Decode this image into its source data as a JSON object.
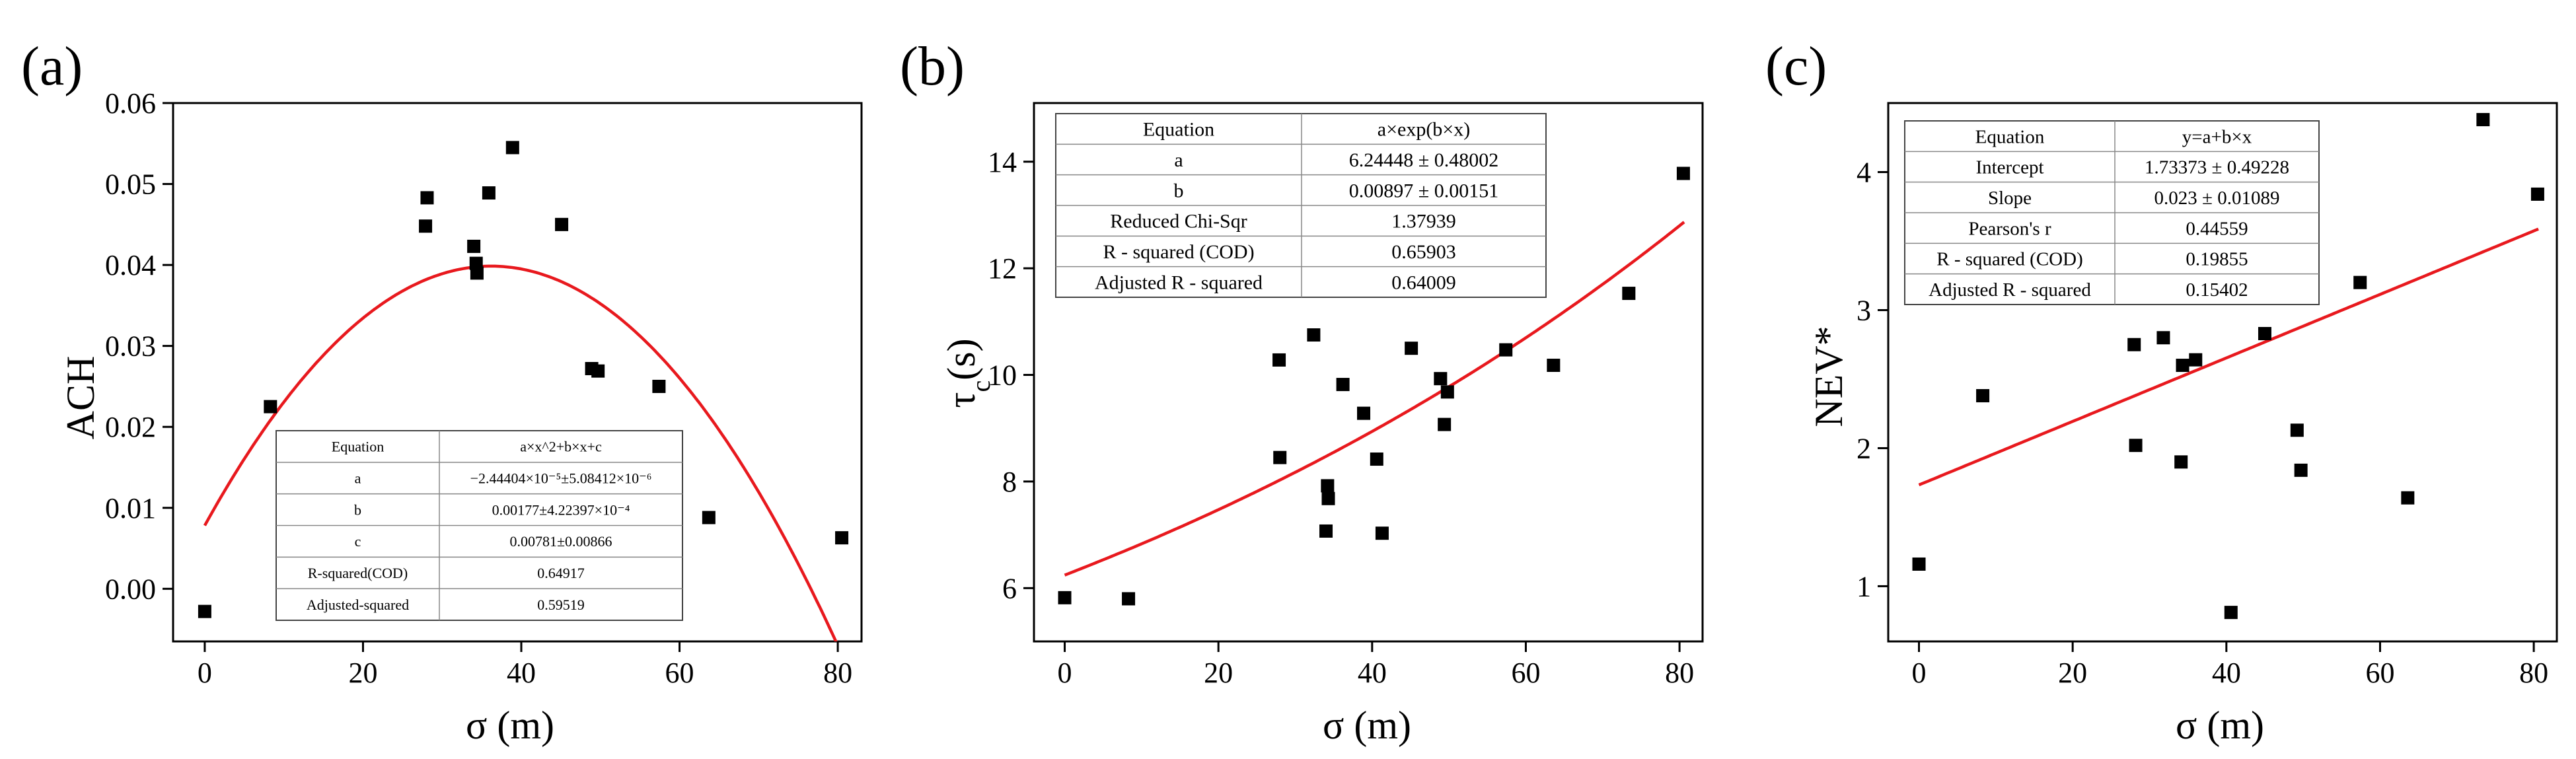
{
  "chart_data": [
    {
      "type": "scatter",
      "panel_label": "(a)",
      "title": "",
      "xlabel": "σ (m)",
      "ylabel": "ACH",
      "xlim": [
        -4,
        83
      ],
      "ylim": [
        -0.0065,
        0.06
      ],
      "xticks": [
        0,
        20,
        40,
        60,
        80
      ],
      "xtick_labels": [
        "0",
        "20",
        "40",
        "60",
        "80"
      ],
      "yticks": [
        0.0,
        0.01,
        0.02,
        0.03,
        0.04,
        0.05,
        0.06
      ],
      "ytick_labels": [
        "0.00",
        "0.01",
        "0.02",
        "0.03",
        "0.04",
        "0.05",
        "0.06"
      ],
      "grid": false,
      "points": [
        [
          0,
          -0.0028
        ],
        [
          8.3,
          0.0225
        ],
        [
          27.9,
          0.0448
        ],
        [
          28.1,
          0.0483
        ],
        [
          34.0,
          0.0423
        ],
        [
          34.3,
          0.0402
        ],
        [
          34.4,
          0.039
        ],
        [
          35.9,
          0.0489
        ],
        [
          38.9,
          0.0545
        ],
        [
          45.1,
          0.045
        ],
        [
          48.9,
          0.0272
        ],
        [
          49.7,
          0.0269
        ],
        [
          57.4,
          0.025
        ],
        [
          63.7,
          0.0088
        ],
        [
          80.5,
          0.0063
        ]
      ],
      "fit": {
        "model": "quadratic",
        "a": -2.44404e-05,
        "b": 0.00177,
        "c": 0.00781
      },
      "table": {
        "rows": [
          [
            "Equation",
            "a×x^2+b×x+c"
          ],
          [
            "a",
            "−2.44404×10⁻⁵±5.08412×10⁻⁶"
          ],
          [
            "b",
            "0.00177±4.22397×10⁻⁴"
          ],
          [
            "c",
            "0.00781±0.00866"
          ],
          [
            "R-squared(COD)",
            "0.64917"
          ],
          [
            "Adjusted-squared",
            "0.59519"
          ]
        ]
      }
    },
    {
      "type": "scatter",
      "panel_label": "(b)",
      "title": "",
      "xlabel": "σ (m)",
      "ylabel_main": "τ",
      "ylabel_sub": "c",
      "ylabel_tail": "(s)",
      "xlim": [
        -4,
        83
      ],
      "ylim": [
        5.0,
        15.1
      ],
      "xticks": [
        0,
        20,
        40,
        60,
        80
      ],
      "xtick_labels": [
        "0",
        "20",
        "40",
        "60",
        "80"
      ],
      "yticks": [
        6,
        8,
        10,
        12,
        14
      ],
      "ytick_labels": [
        "6",
        "8",
        "10",
        "12",
        "14"
      ],
      "grid": false,
      "points": [
        [
          0,
          5.82
        ],
        [
          8.3,
          5.8
        ],
        [
          27.9,
          10.28
        ],
        [
          28.0,
          8.45
        ],
        [
          32.4,
          10.75
        ],
        [
          34.0,
          7.07
        ],
        [
          34.2,
          7.92
        ],
        [
          34.3,
          7.68
        ],
        [
          36.2,
          9.82
        ],
        [
          38.9,
          9.28
        ],
        [
          40.6,
          8.42
        ],
        [
          41.3,
          7.03
        ],
        [
          45.1,
          10.5
        ],
        [
          48.9,
          9.93
        ],
        [
          49.4,
          9.07
        ],
        [
          49.8,
          9.68
        ],
        [
          57.4,
          10.47
        ],
        [
          63.6,
          10.18
        ],
        [
          73.4,
          11.53
        ],
        [
          80.5,
          13.78
        ]
      ],
      "fit": {
        "model": "exponential",
        "a": 6.24448,
        "b": 0.00897
      },
      "table": {
        "rows": [
          [
            "Equation",
            "a×exp(b×x)"
          ],
          [
            "a",
            "6.24448 ± 0.48002"
          ],
          [
            "b",
            "0.00897 ± 0.00151"
          ],
          [
            "Reduced Chi-Sqr",
            "1.37939"
          ],
          [
            "R - squared (COD)",
            "0.65903"
          ],
          [
            "Adjusted R - squared",
            "0.64009"
          ]
        ]
      }
    },
    {
      "type": "scatter",
      "panel_label": "(c)",
      "title": "",
      "xlabel": "σ (m)",
      "ylabel": "NEV*",
      "xlim": [
        -4,
        83
      ],
      "ylim": [
        0.6,
        4.5
      ],
      "xticks": [
        0,
        20,
        40,
        60,
        80
      ],
      "xtick_labels": [
        "0",
        "20",
        "40",
        "60",
        "80"
      ],
      "yticks": [
        1,
        2,
        3,
        4
      ],
      "ytick_labels": [
        "1",
        "2",
        "3",
        "4"
      ],
      "grid": false,
      "points": [
        [
          0,
          1.16
        ],
        [
          8.3,
          2.38
        ],
        [
          28.0,
          2.75
        ],
        [
          28.2,
          2.02
        ],
        [
          31.8,
          2.8
        ],
        [
          34.1,
          1.9
        ],
        [
          34.3,
          2.6
        ],
        [
          36.0,
          2.64
        ],
        [
          40.6,
          0.81
        ],
        [
          45.0,
          2.83
        ],
        [
          49.2,
          2.13
        ],
        [
          49.7,
          1.84
        ],
        [
          57.4,
          3.2
        ],
        [
          63.6,
          1.64
        ],
        [
          73.4,
          4.38
        ],
        [
          80.5,
          3.84
        ]
      ],
      "fit": {
        "model": "linear",
        "a": 1.73373,
        "b": 0.023
      },
      "table": {
        "rows": [
          [
            "Equation",
            "y=a+b×x"
          ],
          [
            "Intercept",
            "1.73373 ± 0.49228"
          ],
          [
            "Slope",
            "0.023 ± 0.01089"
          ],
          [
            "Pearson's r",
            "0.44559"
          ],
          [
            "R - squared (COD)",
            "0.19855"
          ],
          [
            "Adjusted R - squared",
            "0.15402"
          ]
        ]
      }
    }
  ]
}
